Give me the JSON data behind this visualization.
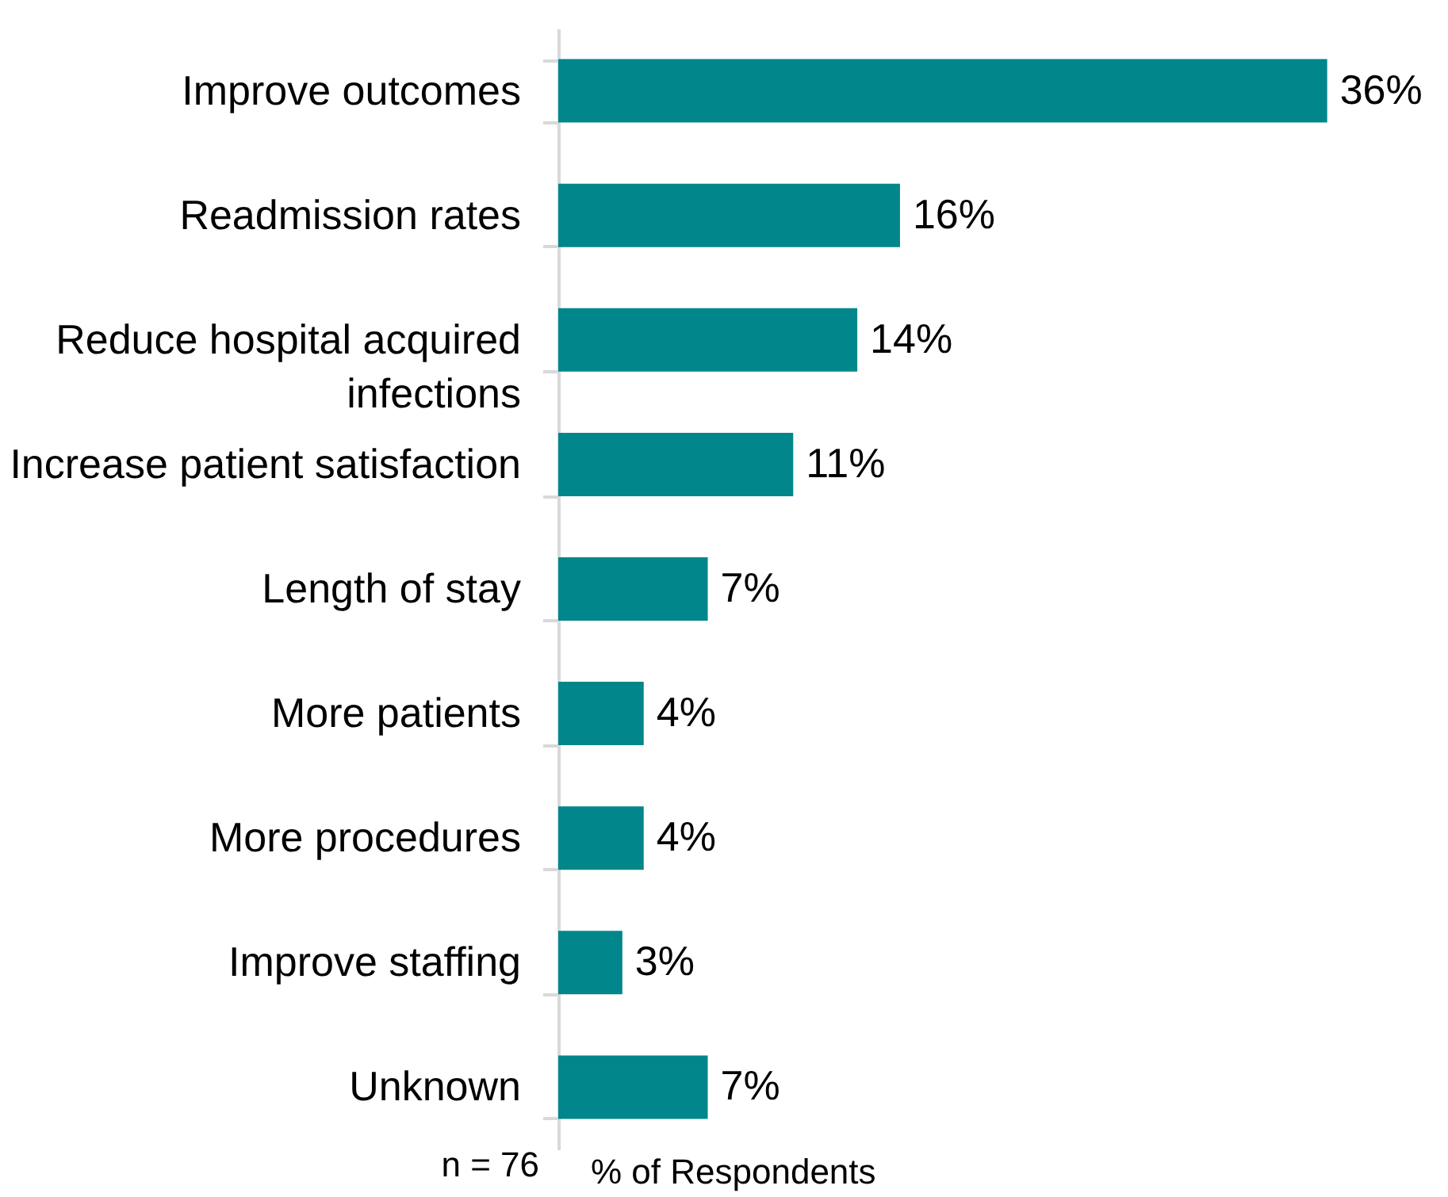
{
  "chart_data": {
    "type": "bar",
    "orientation": "horizontal",
    "categories": [
      "Improve outcomes",
      "Readmission rates",
      "Reduce hospital acquired infections",
      "Increase patient satisfaction",
      "Length of stay",
      "More patients",
      "More procedures",
      "Improve staffing",
      "Unknown"
    ],
    "values": [
      36,
      16,
      14,
      11,
      7,
      4,
      4,
      3,
      7
    ],
    "value_labels": [
      "36%",
      "16%",
      "14%",
      "11%",
      "7%",
      "4%",
      "4%",
      "3%",
      "7%"
    ],
    "color": "#00868b",
    "xlabel": "% of Respondents",
    "annotations": [
      "n = 76"
    ]
  }
}
